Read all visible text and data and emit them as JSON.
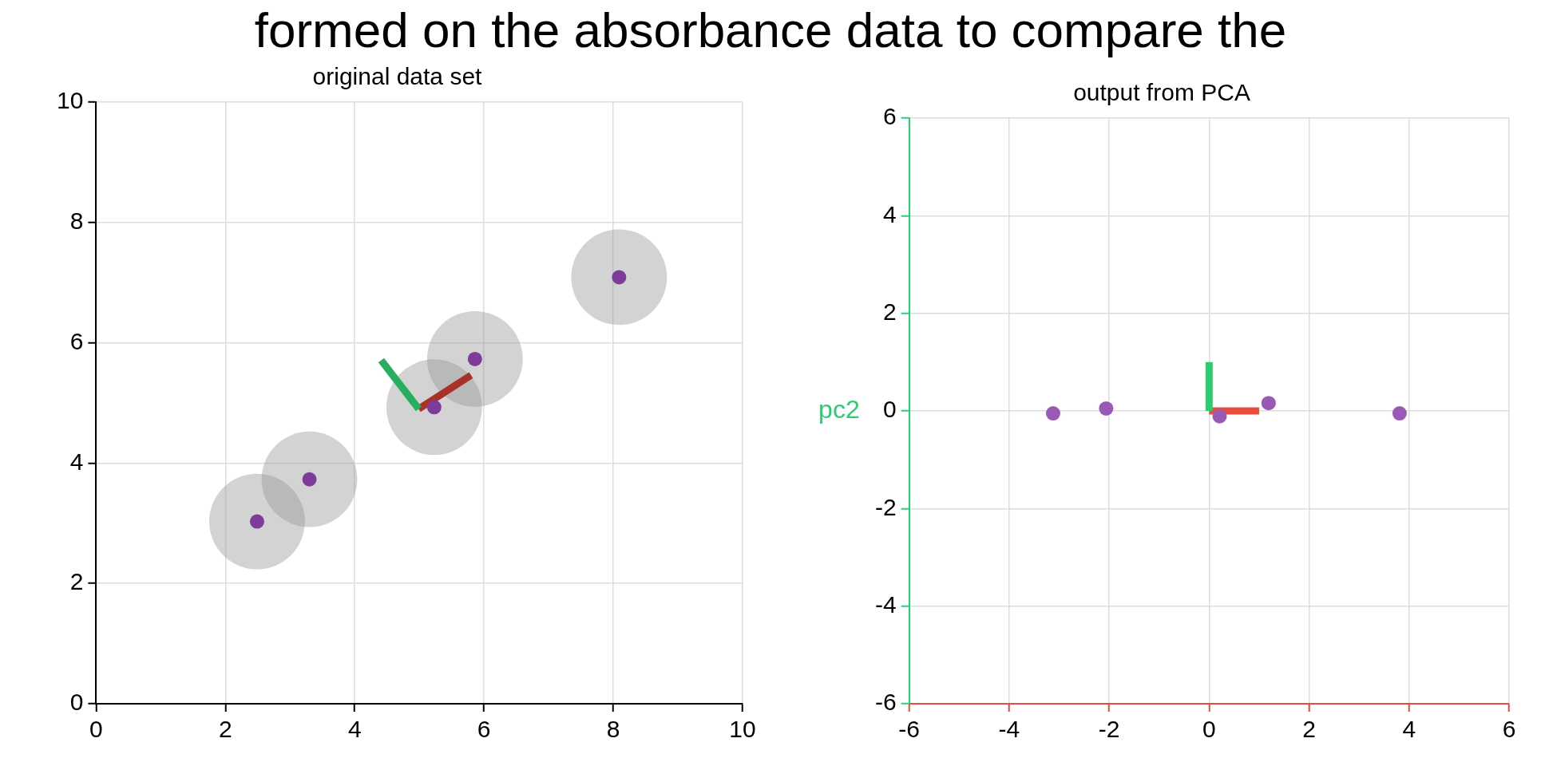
{
  "chart_data": [
    {
      "type": "scatter",
      "title": "original data set",
      "annotations": [
        "formed on the absorbance data to compare the"
      ],
      "xlim": [
        0,
        10
      ],
      "ylim": [
        0,
        10
      ],
      "xticks": [
        0,
        2,
        4,
        6,
        8,
        10
      ],
      "yticks": [
        0,
        2,
        4,
        6,
        8,
        10
      ],
      "grid": true,
      "marker": "circle",
      "series": [
        {
          "color": "#7d3c98",
          "x": [
            2.49,
            3.3,
            5.23,
            5.86,
            8.09
          ],
          "values": [
            3.03,
            3.73,
            4.93,
            5.73,
            7.09
          ]
        },
        {
          "type": "line",
          "marker": "none",
          "color": "#27ae60",
          "x": [
            4.99,
            4.41
          ],
          "values": [
            4.9,
            5.71
          ]
        },
        {
          "type": "line",
          "marker": "none",
          "color": "#a93226",
          "x": [
            4.99,
            5.8
          ],
          "values": [
            4.9,
            5.46
          ]
        }
      ]
    },
    {
      "type": "scatter",
      "title": "output from PCA",
      "ylabel": "pc2",
      "xlim": [
        -6,
        6
      ],
      "ylim": [
        -6,
        6
      ],
      "xticks": [
        -6,
        -4,
        -2,
        0,
        2,
        4,
        6
      ],
      "yticks": [
        -6,
        -4,
        -2,
        0,
        2,
        4,
        6
      ],
      "grid": true,
      "marker": "circle",
      "series": [
        {
          "color": "#9b59b6",
          "x": [
            -3.12,
            -2.06,
            0.21,
            1.19,
            3.81
          ],
          "values": [
            -0.05,
            0.05,
            -0.11,
            0.16,
            -0.05
          ]
        },
        {
          "type": "line",
          "marker": "none",
          "color": "#2ecc71",
          "x": [
            0,
            0
          ],
          "values": [
            0,
            1
          ]
        },
        {
          "type": "line",
          "marker": "none",
          "color": "#e74c3c",
          "x": [
            0,
            1
          ],
          "values": [
            0,
            0
          ]
        }
      ]
    }
  ]
}
